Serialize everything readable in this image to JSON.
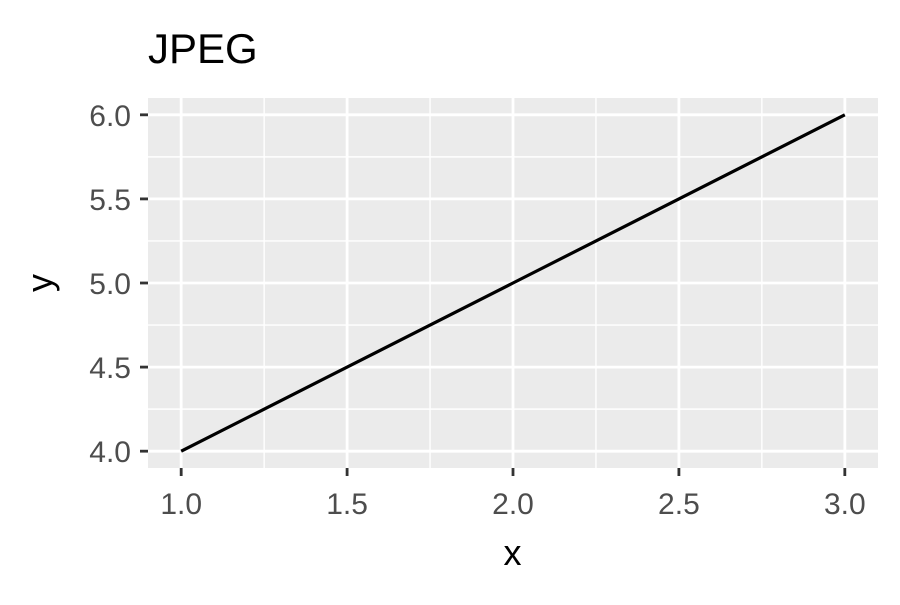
{
  "chart_data": {
    "type": "line",
    "title": "JPEG",
    "xlabel": "x",
    "ylabel": "y",
    "x": [
      1,
      2,
      3
    ],
    "series": [
      {
        "values": [
          4,
          5,
          6
        ],
        "color": "#000000"
      }
    ],
    "xlim": [
      0.9,
      3.1
    ],
    "ylim": [
      3.9,
      6.1
    ],
    "x_ticks": [
      {
        "value": 1.0,
        "label": "1.0"
      },
      {
        "value": 1.5,
        "label": "1.5"
      },
      {
        "value": 2.0,
        "label": "2.0"
      },
      {
        "value": 2.5,
        "label": "2.5"
      },
      {
        "value": 3.0,
        "label": "3.0"
      }
    ],
    "y_ticks": [
      {
        "value": 4.0,
        "label": "4.0"
      },
      {
        "value": 4.5,
        "label": "4.5"
      },
      {
        "value": 5.0,
        "label": "5.0"
      },
      {
        "value": 5.5,
        "label": "5.5"
      },
      {
        "value": 6.0,
        "label": "6.0"
      }
    ],
    "x_minor": [
      1.25,
      1.75,
      2.25,
      2.75
    ],
    "y_minor": [
      4.25,
      4.75,
      5.25,
      5.75
    ],
    "grid": true,
    "panel_background": "#ebebeb",
    "grid_color": "#ffffff",
    "tick_label_color": "#4d4d4d",
    "text_color": "#000000"
  }
}
